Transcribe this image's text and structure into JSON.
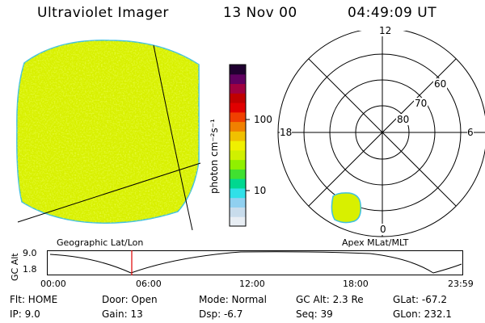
{
  "header": {
    "instrument": "Ultraviolet Imager",
    "date": "13 Nov 00",
    "time": "04:49:09 UT"
  },
  "panels": {
    "left_label": "Geographic Lat/Lon",
    "right_label": "Apex MLat/MLT"
  },
  "colorbar": {
    "unit_label": "photon cm⁻²s⁻¹",
    "tick_100": "100",
    "tick_10": "10",
    "colors": [
      "#e8eef4",
      "#c8dcec",
      "#90d0f0",
      "#30e0e8",
      "#00d890",
      "#40e030",
      "#90f000",
      "#d0f000",
      "#f0f000",
      "#f0c000",
      "#f08000",
      "#f04000",
      "#e00000",
      "#c00000",
      "#a00040",
      "#600060",
      "#200030"
    ]
  },
  "polar": {
    "mlt_labels": {
      "top": "12",
      "left": "18",
      "right": "6",
      "bottom": "0"
    },
    "lat_labels": {
      "r60": "60",
      "r70": "70",
      "r80": "80"
    }
  },
  "altitude_plot": {
    "y_axis_label": "GC Alt",
    "y_max_label": "9.0",
    "y_min_label": "1.8",
    "time_ticks": [
      "00:00",
      "06:00",
      "12:00",
      "18:00",
      "23:59"
    ]
  },
  "info": {
    "flt": "Flt: HOME",
    "ip": "IP:  9.0",
    "door": "Door: Open",
    "gain": "Gain: 13",
    "mode": "Mode: Normal",
    "dsp": "Dsp:   -6.7",
    "gcalt": "GC Alt: 2.3 Re",
    "seq": "Seq: 39",
    "glat": "GLat: -67.2",
    "glon": "GLon: 232.1"
  }
}
